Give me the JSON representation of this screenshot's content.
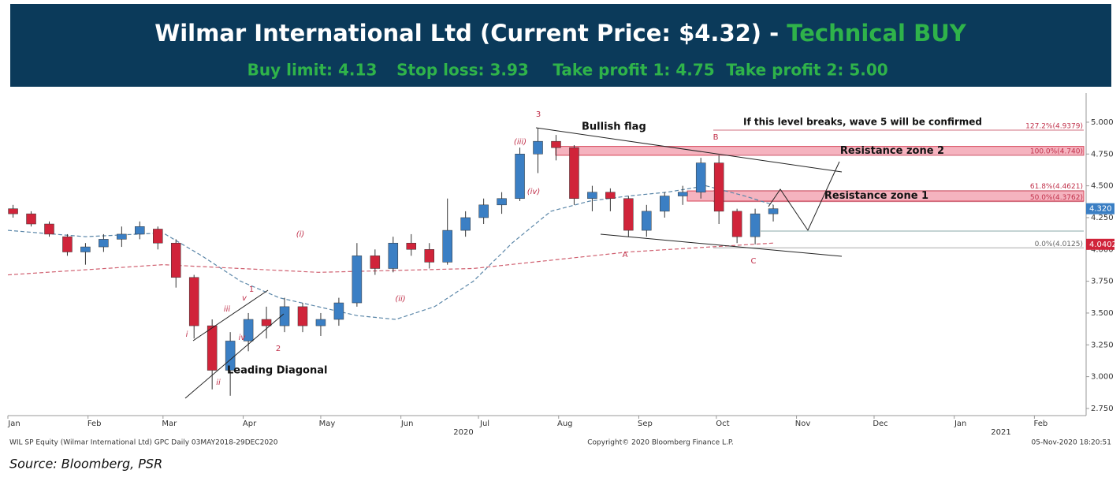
{
  "header": {
    "title": "Wilmar International Ltd (Current Price: $4.32) - ",
    "signal": "Technical BUY",
    "levels": [
      "Buy limit: 4.13",
      "Stop loss: 3.93",
      "Take profit 1: 4.75",
      "Take profit 2: 5.00"
    ]
  },
  "chart_data": {
    "type": "candlestick",
    "x": [
      2,
      9,
      16,
      23,
      30,
      37,
      44,
      51,
      58,
      65,
      72,
      79,
      86,
      93,
      100,
      107,
      114,
      121,
      128,
      135,
      142,
      149,
      156,
      163,
      170,
      177,
      184,
      191,
      198,
      205,
      212,
      219,
      226,
      233,
      240,
      247,
      254,
      261,
      268,
      275,
      282,
      289,
      296
    ],
    "open": [
      4.32,
      4.28,
      4.2,
      4.1,
      3.98,
      4.02,
      4.08,
      4.12,
      4.16,
      4.05,
      3.78,
      3.4,
      3.05,
      3.28,
      3.45,
      3.4,
      3.55,
      3.4,
      3.45,
      3.58,
      3.95,
      3.85,
      4.05,
      4.0,
      3.9,
      4.15,
      4.25,
      4.35,
      4.4,
      4.75,
      4.85,
      4.8,
      4.4,
      4.45,
      4.4,
      4.15,
      4.3,
      4.42,
      4.45,
      4.68,
      4.3,
      4.1,
      4.28
    ],
    "high": [
      4.35,
      4.3,
      4.22,
      4.12,
      4.05,
      4.12,
      4.18,
      4.22,
      4.18,
      4.08,
      3.8,
      3.45,
      3.35,
      3.5,
      3.55,
      3.62,
      3.58,
      3.5,
      3.62,
      4.05,
      4.0,
      4.1,
      4.12,
      4.05,
      4.4,
      4.3,
      4.4,
      4.45,
      4.8,
      4.95,
      4.9,
      4.82,
      4.5,
      4.48,
      4.42,
      4.35,
      4.45,
      4.5,
      4.72,
      4.74,
      4.32,
      4.32,
      4.35
    ],
    "low": [
      4.25,
      4.18,
      4.1,
      3.95,
      3.88,
      3.98,
      4.02,
      4.08,
      4.0,
      3.7,
      3.3,
      2.9,
      2.85,
      3.2,
      3.3,
      3.35,
      3.35,
      3.32,
      3.4,
      3.55,
      3.8,
      3.82,
      3.95,
      3.85,
      3.88,
      4.1,
      4.2,
      4.28,
      4.38,
      4.6,
      4.7,
      4.35,
      4.3,
      4.3,
      4.1,
      4.1,
      4.25,
      4.35,
      4.4,
      4.2,
      4.05,
      4.04,
      4.22
    ],
    "close": [
      4.28,
      4.2,
      4.12,
      3.98,
      4.02,
      4.08,
      4.12,
      4.18,
      4.05,
      3.78,
      3.4,
      3.05,
      3.28,
      3.45,
      3.4,
      3.55,
      3.4,
      3.45,
      3.58,
      3.95,
      3.85,
      4.05,
      4.0,
      3.9,
      4.15,
      4.25,
      4.35,
      4.4,
      4.75,
      4.85,
      4.8,
      4.4,
      4.45,
      4.4,
      4.15,
      4.3,
      4.42,
      4.45,
      4.68,
      4.3,
      4.1,
      4.28,
      4.32
    ],
    "up_color": "#3b7fc4",
    "down_color": "#d0243a",
    "moving_averages": [
      {
        "color": "#5a86a8",
        "x": [
          0,
          30,
          60,
          75,
          90,
          105,
          120,
          135,
          150,
          165,
          180,
          195,
          210,
          225,
          240,
          255,
          270,
          285,
          296
        ],
        "values": [
          4.15,
          4.1,
          4.13,
          3.95,
          3.75,
          3.62,
          3.55,
          3.48,
          3.45,
          3.55,
          3.75,
          4.05,
          4.3,
          4.38,
          4.42,
          4.45,
          4.5,
          4.42,
          4.35
        ]
      },
      {
        "color": "#d06070",
        "x": [
          0,
          60,
          120,
          180,
          240,
          296
        ],
        "values": [
          3.8,
          3.88,
          3.82,
          3.85,
          3.98,
          4.05
        ]
      }
    ],
    "xlim": [
      0,
      417
    ],
    "xticks": [
      {
        "value": 0,
        "label": "Jan"
      },
      {
        "value": 31,
        "label": "Feb"
      },
      {
        "value": 60,
        "label": "Mar"
      },
      {
        "value": 91,
        "label": "Apr"
      },
      {
        "value": 121,
        "label": "May"
      },
      {
        "value": 152,
        "label": "Jun"
      },
      {
        "value": 182,
        "label": "Jul"
      },
      {
        "value": 213,
        "label": "Aug"
      },
      {
        "value": 244,
        "label": "Sep"
      },
      {
        "value": 274,
        "label": "Oct"
      },
      {
        "value": 305,
        "label": "Nov"
      },
      {
        "value": 335,
        "label": "Dec"
      },
      {
        "value": 366,
        "label": "Jan"
      },
      {
        "value": 397,
        "label": "Feb"
      }
    ],
    "years": [
      "2020",
      "2021"
    ],
    "ylim": [
      2.7,
      5.2
    ],
    "yticks": [
      {
        "value": 2.75,
        "label": "2.750"
      },
      {
        "value": 3,
        "label": "3.000"
      },
      {
        "value": 3.25,
        "label": "3.250"
      },
      {
        "value": 3.5,
        "label": "3.500"
      },
      {
        "value": 3.75,
        "label": "3.750"
      },
      {
        "value": 4,
        "label": "4.000"
      },
      {
        "value": 4.25,
        "label": "4.250"
      },
      {
        "value": 4.5,
        "label": "4.500"
      },
      {
        "value": 4.75,
        "label": "4.750"
      },
      {
        "value": 5,
        "label": "5.000"
      }
    ],
    "fib_levels": [
      {
        "value": 4.9379,
        "label": "127.2%(4.9379)"
      },
      {
        "value": 4.74,
        "label": "100.0%(4.740)"
      },
      {
        "value": 4.4621,
        "label": "61.8%(4.4621)"
      },
      {
        "value": 4.3762,
        "label": "50.0%(4.3762)"
      },
      {
        "value": 4.0125,
        "label": "0.0%(4.0125)"
      }
    ],
    "zones": [
      {
        "label": "Resistance zone 2",
        "range": [
          4.74,
          4.81
        ]
      },
      {
        "label": "Resistance zone 1",
        "range": [
          4.38,
          4.46
        ]
      }
    ],
    "price_tags": [
      {
        "value": 4.32,
        "label": "4.320",
        "color": "#3b7fc4"
      },
      {
        "value": 4.0402,
        "label": "4.0402",
        "color": "#d0243a"
      }
    ],
    "wave_labels": [
      "3",
      "(iii)",
      "(iv)",
      "(i)",
      "(ii)",
      "i",
      "ii",
      "iii",
      "iv",
      "v",
      "1",
      "2",
      "A",
      "B",
      "C"
    ],
    "annotations": [
      "Bullish flag",
      "Leading Diagonal",
      "If this level breaks, wave 5 will be confirmed"
    ],
    "footer": {
      "left": "WIL SP Equity (Wilmar International Ltd) GPC  Daily 03MAY2018-29DEC2020",
      "center": "Copyright© 2020 Bloomberg Finance L.P.",
      "right": "05-Nov-2020 18:20:51"
    },
    "source": "Source: Bloomberg, PSR"
  }
}
